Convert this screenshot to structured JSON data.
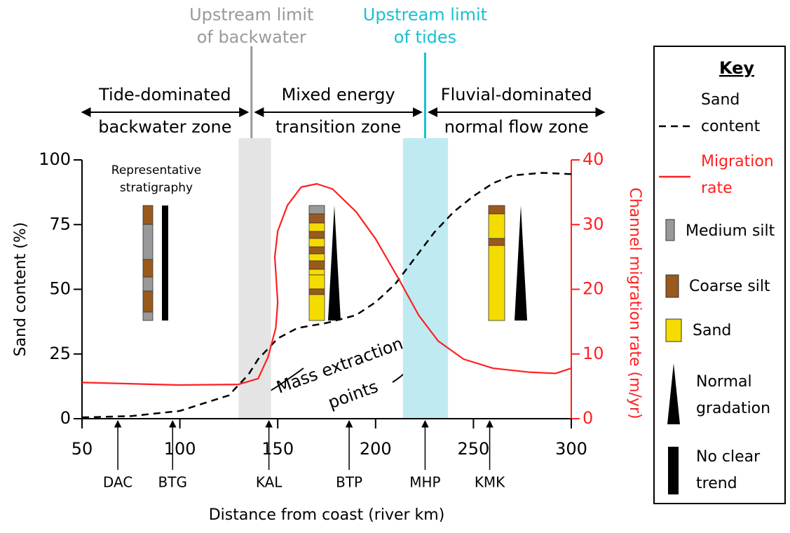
{
  "chart_data": {
    "type": "line",
    "xlabel": "Distance from coast (river km)",
    "ylabel": "Sand content (%)",
    "y2label": "Channel migration rate (m/yr)",
    "xlim": [
      50,
      300
    ],
    "xticks": [
      50,
      100,
      150,
      200,
      250,
      300
    ],
    "ylim": [
      0,
      100
    ],
    "yticks": [
      0,
      25,
      50,
      75,
      100
    ],
    "y2lim": [
      0,
      40
    ],
    "y2ticks": [
      0,
      10,
      20,
      30,
      40
    ],
    "series": [
      {
        "name": "Sand content",
        "color": "#000000",
        "dash": true,
        "x": [
          50,
          75,
          100,
          125,
          135,
          140,
          150,
          160,
          175,
          190,
          200,
          210,
          220,
          230,
          240,
          250,
          260,
          270,
          285,
          300
        ],
        "values": [
          0.5,
          1,
          3,
          9,
          17,
          23,
          31,
          35,
          37,
          40,
          45,
          52,
          62,
          72,
          80,
          86,
          91,
          94,
          95,
          94.5
        ]
      },
      {
        "name": "Migration rate",
        "color": "#ff2020",
        "axis": "y2",
        "x": [
          50,
          100,
          130,
          140,
          145,
          149,
          150,
          148.5,
          150,
          155,
          162,
          170,
          178,
          190,
          200,
          212,
          222,
          232,
          245,
          260,
          278,
          292,
          300
        ],
        "values": [
          5.6,
          5.2,
          5.3,
          6.2,
          9.5,
          14,
          18,
          25,
          29,
          33,
          35.8,
          36.3,
          35.5,
          32,
          27.8,
          21.5,
          16,
          12,
          9.2,
          7.8,
          7.2,
          7.0,
          7.8
        ]
      }
    ],
    "shaded_regions": [
      {
        "from": 130,
        "to": 146.6,
        "color": "#e4e4e4"
      },
      {
        "from": 214,
        "to": 237,
        "color": "#bfeaf2"
      }
    ],
    "limits": [
      {
        "x": 136.6,
        "lines": [
          "Upstream limit",
          "of backwater"
        ],
        "color": "#9a9a9a"
      },
      {
        "x": 225.3,
        "lines": [
          "Upstream limit",
          "of tides"
        ],
        "color": "#17c0d2"
      }
    ],
    "zones": [
      {
        "from": 50,
        "to": 136.6,
        "lines": [
          "Tide-dominated",
          "backwater zone"
        ]
      },
      {
        "from": 136.6,
        "to": 225.3,
        "lines": [
          "Mixed energy",
          "transition zone"
        ]
      },
      {
        "from": 225.3,
        "to": 300,
        "lines": [
          "Fluvial-dominated",
          "normal flow zone"
        ]
      }
    ],
    "stations": [
      {
        "x": 68.3,
        "label": "DAC"
      },
      {
        "x": 96.3,
        "label": "BTG"
      },
      {
        "x": 145.5,
        "label": "KAL"
      },
      {
        "x": 186.5,
        "label": "BTP"
      },
      {
        "x": 225.3,
        "label": "MHP"
      },
      {
        "x": 258.3,
        "label": "KMK"
      }
    ],
    "annotations": {
      "stratigraphy": [
        "Representative",
        "stratigraphy"
      ],
      "mass_extraction": [
        "Mass extraction",
        "points"
      ]
    },
    "key": {
      "title": "Key",
      "items": [
        {
          "label": "Medium silt",
          "color": "#999999"
        },
        {
          "label": "Coarse silt",
          "color": "#9a5a1e"
        },
        {
          "label": "Sand",
          "color": "#f5dc00"
        },
        {
          "label": "Normal gradation",
          "color": "#000000"
        },
        {
          "label": "No clear trend",
          "color": "#000000"
        }
      ]
    }
  }
}
